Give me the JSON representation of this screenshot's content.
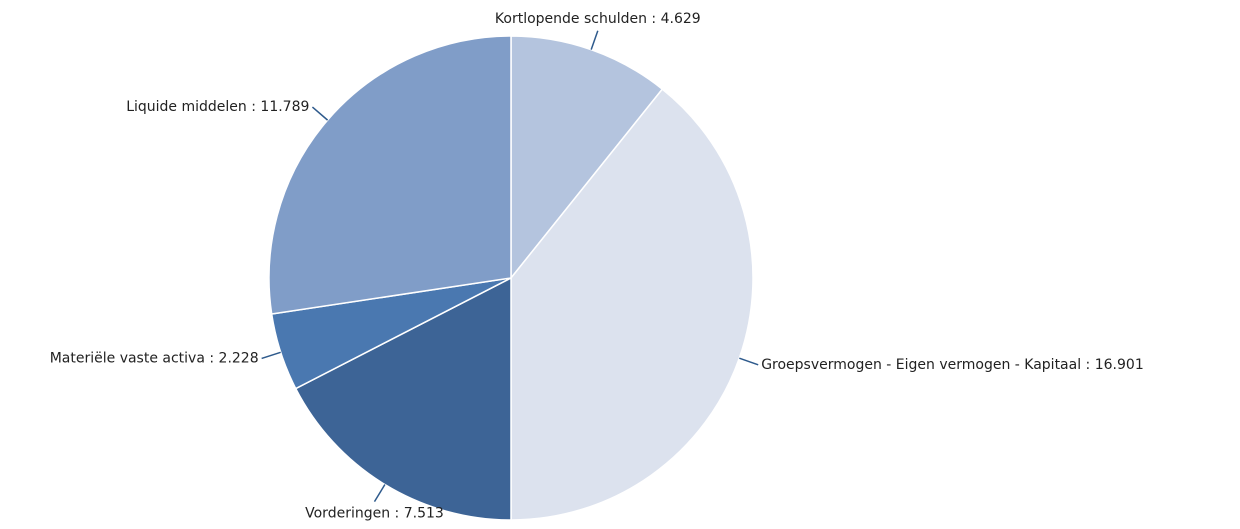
{
  "chart_data": {
    "type": "pie",
    "categories": [
      "Kortlopende schulden",
      "Groepsvermogen - Eigen vermogen - Kapitaal",
      "Vorderingen",
      "Materiële vaste activa",
      "Liquide middelen"
    ],
    "values": [
      4629,
      16901,
      7513,
      2228,
      11789
    ],
    "value_labels": [
      "4.629",
      "16.901",
      "7.513",
      "2.228",
      "11.789"
    ],
    "label_separator": " : ",
    "colors": [
      "#b4c4de",
      "#dce2ee",
      "#3d6496",
      "#4a78b0",
      "#809dc8"
    ]
  }
}
